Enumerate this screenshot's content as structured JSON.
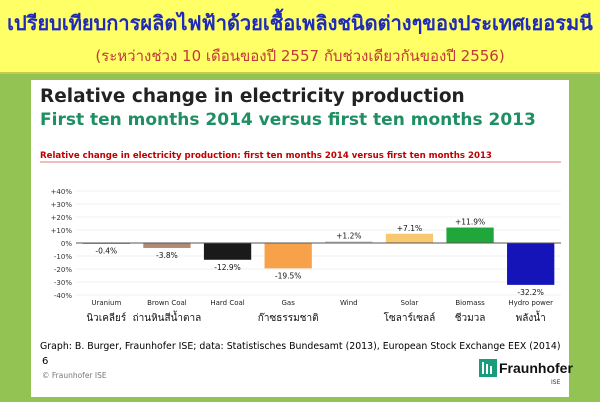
{
  "banner": {
    "title": "เปรียบเทียบการผลิตไฟฟ้าด้วยเชื้อเพลิงชนิดต่างๆของประเทศเยอรมนี",
    "subtitle": "(ระหว่างช่วง 10  เดือนของปี 2557  กับช่วงเดียวกันของปี 2556)"
  },
  "slide": {
    "title": "Relative change in electricity production",
    "subtitle": "First ten months 2014 versus first ten months 2013",
    "source": "Graph: B. Burger, Fraunhofer ISE; data: Statistisches Bundesamt (2013), European Stock Exchange EEX (2014)",
    "page_number": "6",
    "copyright": "© Fraunhofer ISE",
    "logo_name": "Fraunhofer",
    "logo_sub": "ISE"
  },
  "chart_data": {
    "type": "bar",
    "title": "Relative change in electricity production: first ten months 2014 versus first ten months 2013",
    "categories": [
      "Uranium",
      "Brown Coal",
      "Hard Coal",
      "Gas",
      "Wind",
      "Solar",
      "Biomass",
      "Hydro power"
    ],
    "categories_thai": [
      "นิวเคลียร์",
      "ถ่านหินสีน้ำตาล",
      "",
      "ก๊าซธรรมชาติ",
      "",
      "โซลาร์เซลล์",
      "ชีวมวล",
      "พลังน้ำ"
    ],
    "values": [
      -0.4,
      -3.8,
      -12.9,
      -19.5,
      1.2,
      7.1,
      11.9,
      -32.2
    ],
    "value_labels": [
      "-0.4%",
      "-3.8%",
      "-12.9%",
      "-19.5%",
      "+1.2%",
      "+7.1%",
      "+11.9%",
      "-32.2%"
    ],
    "colors": [
      "#9a9a9a",
      "#b08a72",
      "#1a1a1a",
      "#f7a24a",
      "#c8c8d0",
      "#f7c870",
      "#21a63c",
      "#1414b8"
    ],
    "yticks": [
      "+40%",
      "+30%",
      "+20%",
      "+10%",
      "0%",
      "-10%",
      "-20%",
      "-30%",
      "-40%"
    ],
    "ylim": [
      -40,
      40
    ],
    "title_color": "#c00000"
  }
}
